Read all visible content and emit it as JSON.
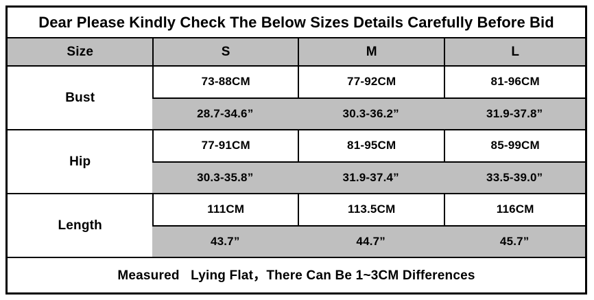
{
  "chart_data": {
    "type": "table",
    "title": "Dear Please Kindly Check The Below Sizes Details Carefully Before Bid",
    "columns": [
      "Size",
      "S",
      "M",
      "L"
    ],
    "rows": [
      {
        "label": "Bust",
        "cm": [
          "73-88CM",
          "77-92CM",
          "81-96CM"
        ],
        "inch": [
          "28.7-34.6”",
          "30.3-36.2”",
          "31.9-37.8”"
        ]
      },
      {
        "label": "Hip",
        "cm": [
          "77-91CM",
          "81-95CM",
          "85-99CM"
        ],
        "inch": [
          "30.3-35.8”",
          "31.9-37.4”",
          "33.5-39.0”"
        ]
      },
      {
        "label": "Length",
        "cm": [
          "111CM",
          "113.5CM",
          "116CM"
        ],
        "inch": [
          "43.7”",
          "44.7”",
          "45.7”"
        ]
      }
    ],
    "note": "Measured   Lying Flat，There Can Be 1~3CM Differences",
    "layout": {
      "grid": true,
      "legend_position": "none"
    }
  },
  "colors": {
    "header_row_bg": "#bfbfbf",
    "inch_row_bg": "#bfbfbf",
    "cm_row_bg": "#ffffff",
    "border": "#000000",
    "text": "#000000"
  }
}
